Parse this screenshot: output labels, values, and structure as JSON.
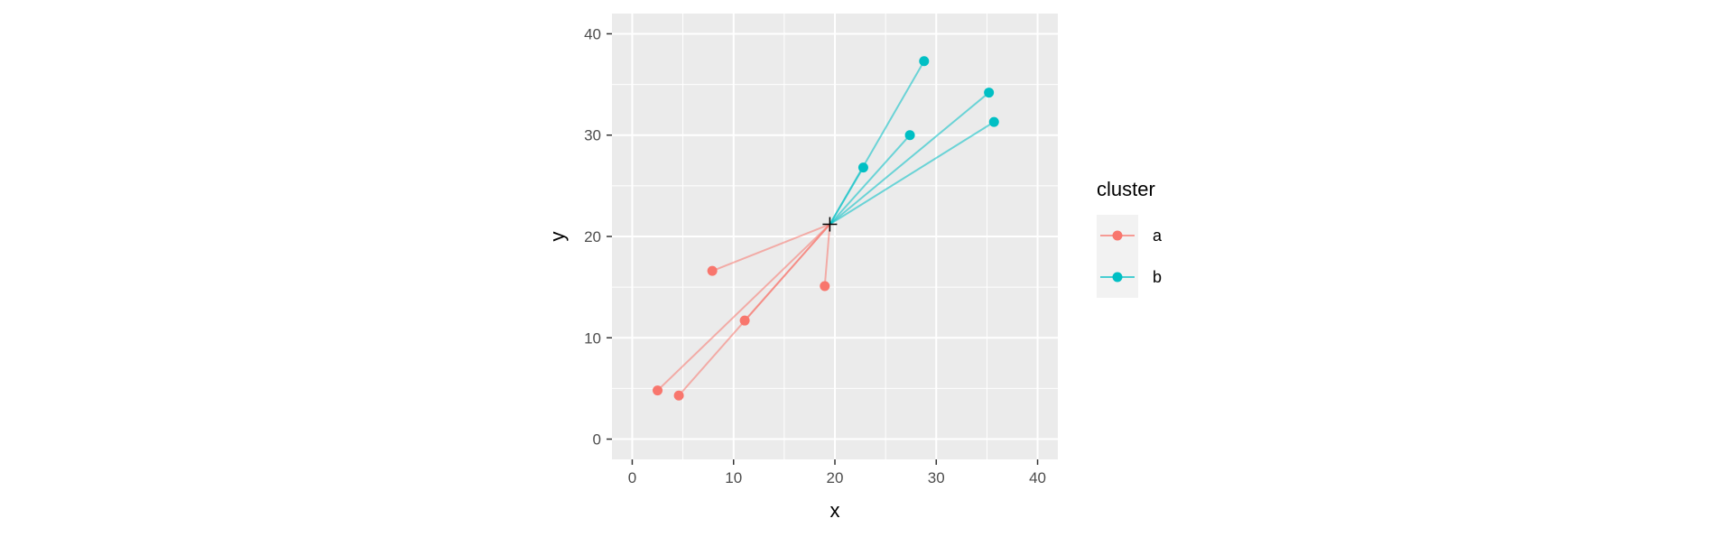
{
  "chart_data": {
    "type": "scatter",
    "xlabel": "x",
    "ylabel": "y",
    "xlim": [
      -2,
      42
    ],
    "ylim": [
      -2,
      42
    ],
    "x_ticks": [
      0,
      10,
      20,
      30,
      40
    ],
    "y_ticks": [
      0,
      10,
      20,
      30,
      40
    ],
    "grid": true,
    "legend_title": "cluster",
    "legend_position": "right",
    "centroid": {
      "x": 19.5,
      "y": 21.2
    },
    "series": [
      {
        "name": "a",
        "color": "#F8766D",
        "points": [
          {
            "x": 7.9,
            "y": 16.6
          },
          {
            "x": 11.1,
            "y": 11.7
          },
          {
            "x": 19.0,
            "y": 15.1
          },
          {
            "x": 2.5,
            "y": 4.8
          },
          {
            "x": 4.6,
            "y": 4.3
          }
        ]
      },
      {
        "name": "b",
        "color": "#00BFC4",
        "points": [
          {
            "x": 22.8,
            "y": 26.8
          },
          {
            "x": 27.4,
            "y": 30.0
          },
          {
            "x": 28.8,
            "y": 37.3
          },
          {
            "x": 35.2,
            "y": 34.2
          },
          {
            "x": 35.7,
            "y": 31.3
          }
        ]
      }
    ]
  }
}
